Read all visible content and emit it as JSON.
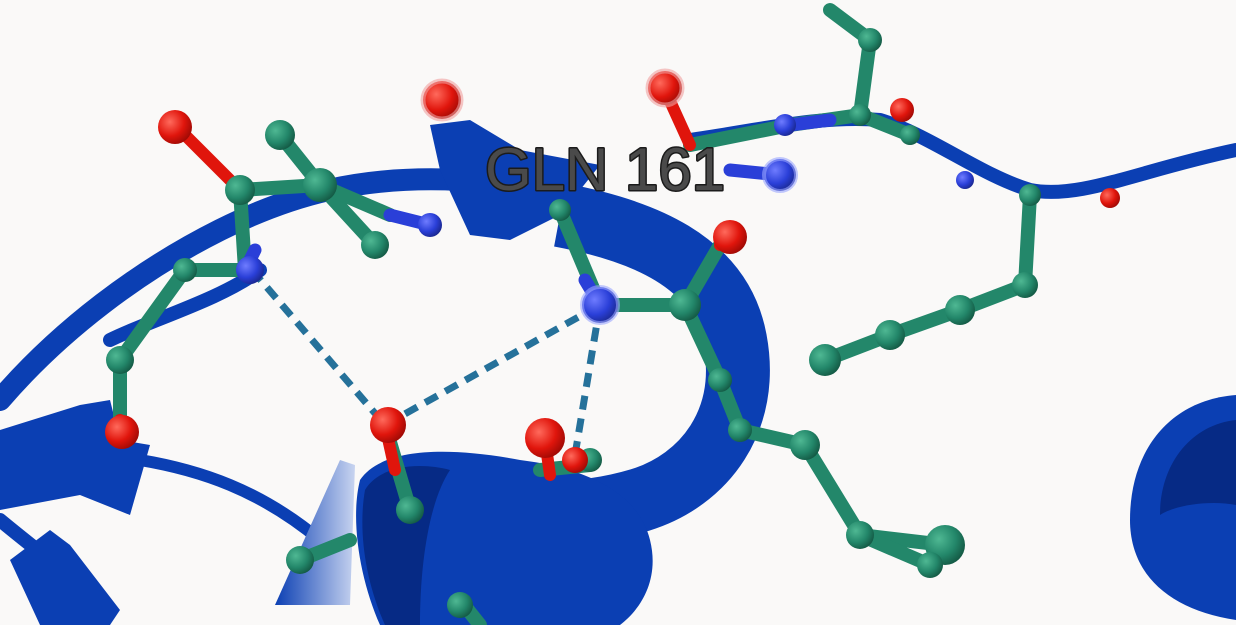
{
  "viewer": {
    "residue_label": "GLN 161"
  },
  "colors": {
    "background": "#faf9f8",
    "ribbon": "#0b3fb3",
    "ribbon_dark": "#062a85",
    "carbon": "#23876a",
    "oxygen": "#e0150c",
    "nitrogen": "#2a3fd8",
    "hbond": "#25719a",
    "label_fill": "#4a4a4a",
    "label_outline": "#1b1b1b"
  }
}
